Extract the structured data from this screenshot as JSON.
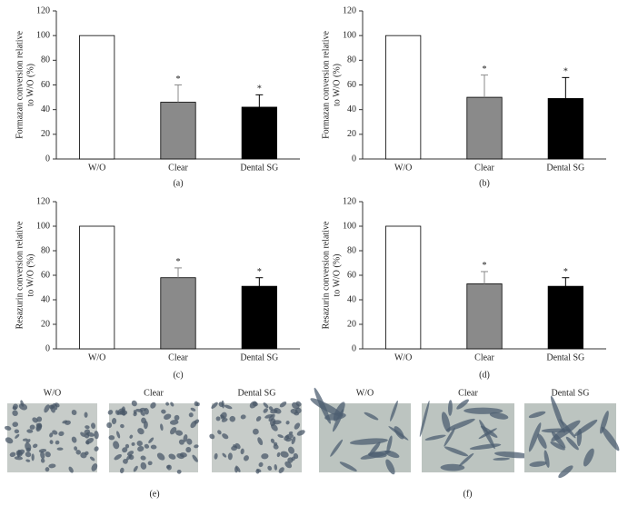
{
  "chart_data": [
    {
      "type": "bar",
      "panel": "(a)",
      "ylabel": [
        "Formazan conversion relative",
        "to W/O (%)"
      ],
      "categories": [
        "W/O",
        "Clear",
        "Dental SG"
      ],
      "values": [
        100,
        46,
        42
      ],
      "errors": [
        null,
        14,
        10
      ],
      "colors": [
        "#ffffff",
        "#8a8a8a",
        "#000000"
      ],
      "annotations": [
        null,
        "*",
        "*"
      ],
      "ylim": [
        0,
        120
      ],
      "yticks": [
        0,
        20,
        40,
        60,
        80,
        100,
        120
      ],
      "grid": false
    },
    {
      "type": "bar",
      "panel": "(b)",
      "ylabel": [
        "Formazan conversion relative",
        "to W/O (%)"
      ],
      "categories": [
        "W/O",
        "Clear",
        "Dental SG"
      ],
      "values": [
        100,
        50,
        49
      ],
      "errors": [
        null,
        18,
        17
      ],
      "colors": [
        "#ffffff",
        "#8a8a8a",
        "#000000"
      ],
      "annotations": [
        null,
        "*",
        "*"
      ],
      "ylim": [
        0,
        120
      ],
      "yticks": [
        0,
        20,
        40,
        60,
        80,
        100,
        120
      ],
      "grid": false
    },
    {
      "type": "bar",
      "panel": "(c)",
      "ylabel": [
        "Resazurin conversion relative",
        "to W/O (%)"
      ],
      "categories": [
        "W/O",
        "Clear",
        "Dental SG"
      ],
      "values": [
        100,
        58,
        51
      ],
      "errors": [
        null,
        8,
        7
      ],
      "colors": [
        "#ffffff",
        "#8a8a8a",
        "#000000"
      ],
      "annotations": [
        null,
        "*",
        "*"
      ],
      "ylim": [
        0,
        120
      ],
      "yticks": [
        0,
        20,
        40,
        60,
        80,
        100,
        120
      ],
      "grid": false
    },
    {
      "type": "bar",
      "panel": "(d)",
      "ylabel": [
        "Resazurin conversion relative",
        "to W/O (%)"
      ],
      "categories": [
        "W/O",
        "Clear",
        "Dental SG"
      ],
      "values": [
        100,
        53,
        51
      ],
      "errors": [
        null,
        10,
        7
      ],
      "colors": [
        "#ffffff",
        "#8a8a8a",
        "#000000"
      ],
      "annotations": [
        null,
        "*",
        "*"
      ],
      "ylim": [
        0,
        120
      ],
      "yticks": [
        0,
        20,
        40,
        60,
        80,
        100,
        120
      ],
      "grid": false
    }
  ],
  "micrographs": [
    {
      "panel": "(e)",
      "labels": [
        "W/O",
        "Clear",
        "Dental SG"
      ]
    },
    {
      "panel": "(f)",
      "labels": [
        "W/O",
        "Clear",
        "Dental SG"
      ]
    }
  ]
}
